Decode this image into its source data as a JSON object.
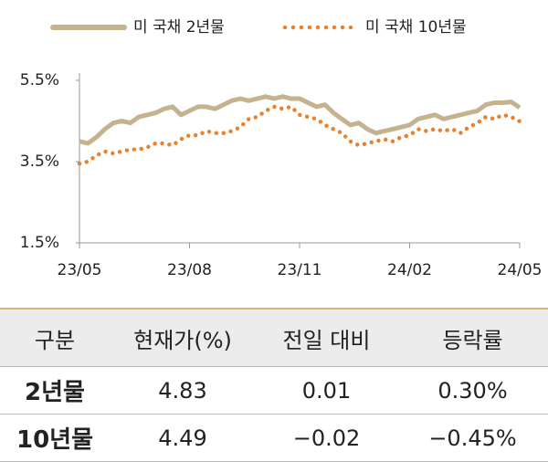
{
  "chart_data": {
    "type": "line",
    "categories": [
      "23/05",
      null,
      null,
      null,
      null,
      null,
      null,
      null,
      null,
      null,
      null,
      null,
      null,
      "23/08",
      null,
      null,
      null,
      null,
      null,
      null,
      null,
      null,
      null,
      null,
      null,
      null,
      "23/11",
      null,
      null,
      null,
      null,
      null,
      null,
      null,
      null,
      null,
      null,
      null,
      null,
      "24/02",
      null,
      null,
      null,
      null,
      null,
      null,
      null,
      null,
      null,
      null,
      null,
      null,
      "24/05"
    ],
    "series": [
      {
        "name": "미 국채 2년물",
        "color": "#c5b28f",
        "style": "solid",
        "values": [
          4.0,
          3.95,
          4.1,
          4.3,
          4.45,
          4.5,
          4.45,
          4.6,
          4.65,
          4.7,
          4.8,
          4.85,
          4.65,
          4.75,
          4.85,
          4.85,
          4.8,
          4.9,
          5.0,
          5.05,
          5.0,
          5.05,
          5.1,
          5.05,
          5.1,
          5.05,
          5.05,
          4.95,
          4.85,
          4.9,
          4.7,
          4.55,
          4.4,
          4.45,
          4.3,
          4.2,
          4.25,
          4.3,
          4.35,
          4.4,
          4.55,
          4.6,
          4.65,
          4.55,
          4.6,
          4.65,
          4.7,
          4.75,
          4.9,
          4.95,
          4.95,
          4.97,
          4.83
        ]
      },
      {
        "name": "미 국채 10년물",
        "color": "#e8822e",
        "style": "dotted",
        "values": [
          3.45,
          3.5,
          3.65,
          3.75,
          3.7,
          3.75,
          3.8,
          3.8,
          3.85,
          3.95,
          3.95,
          3.9,
          4.05,
          4.15,
          4.15,
          4.25,
          4.2,
          4.2,
          4.25,
          4.35,
          4.55,
          4.6,
          4.75,
          4.85,
          4.8,
          4.85,
          4.65,
          4.6,
          4.55,
          4.4,
          4.3,
          4.2,
          4.0,
          3.9,
          3.95,
          4.0,
          4.05,
          4.0,
          4.1,
          4.15,
          4.3,
          4.25,
          4.3,
          4.25,
          4.3,
          4.2,
          4.35,
          4.45,
          4.6,
          4.55,
          4.65,
          4.6,
          4.49
        ]
      }
    ],
    "ylim": [
      1.5,
      5.5
    ],
    "yticks": [
      {
        "value": 1.5,
        "label": "1.5%"
      },
      {
        "value": 3.5,
        "label": "3.5%"
      },
      {
        "value": 5.5,
        "label": "5.5%"
      }
    ],
    "grid": false
  },
  "table": {
    "header": [
      "구분",
      "현재가(%)",
      "전일 대비",
      "등락률"
    ],
    "rows": [
      [
        "2년물",
        "4.83",
        "0.01",
        "0.30%"
      ],
      [
        "10년물",
        "4.49",
        "−0.02",
        "−0.45%"
      ]
    ]
  }
}
